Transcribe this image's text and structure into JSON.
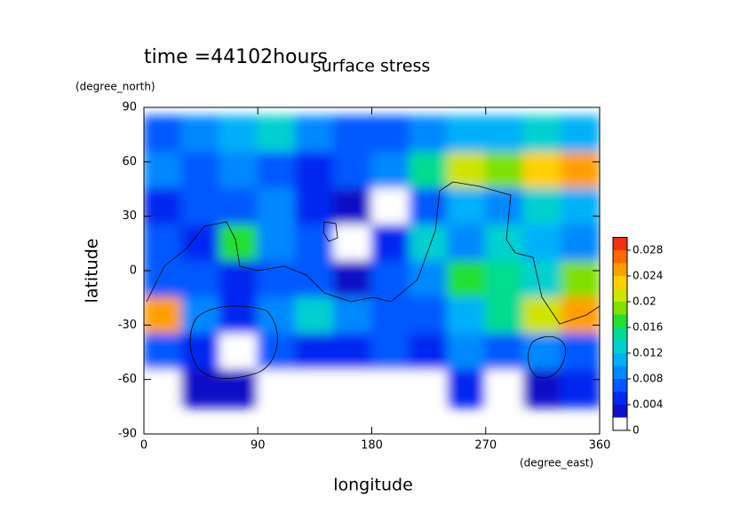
{
  "chart_data": {
    "type": "contour",
    "title": "surface stress",
    "subtitle": "time =44102hours",
    "x_label": "longitude",
    "y_label": "latitude",
    "x_unit": "(degree_east)",
    "y_unit": "(degree_north)",
    "xlim": [
      0,
      360
    ],
    "ylim": [
      -90,
      90
    ],
    "xticks": [
      0,
      90,
      180,
      270,
      360
    ],
    "yticks": [
      -90,
      -60,
      -30,
      0,
      30,
      60,
      90
    ],
    "x": [
      15,
      45,
      75,
      105,
      135,
      165,
      195,
      225,
      255,
      285,
      315,
      345
    ],
    "y": [
      75,
      55,
      35,
      15,
      -5,
      -25,
      -45,
      -65
    ],
    "z": [
      [
        0.006,
        0.008,
        0.01,
        0.012,
        0.008,
        0.006,
        0.006,
        0.008,
        0.01,
        0.01,
        0.012,
        0.01
      ],
      [
        0.008,
        0.006,
        0.008,
        0.006,
        0.004,
        0.006,
        0.008,
        0.014,
        0.02,
        0.018,
        0.022,
        0.024
      ],
      [
        0.004,
        0.006,
        0.006,
        0.008,
        0.004,
        0.002,
        0.001,
        0.006,
        0.01,
        0.008,
        0.012,
        0.01
      ],
      [
        0.006,
        0.004,
        0.016,
        0.008,
        0.006,
        0.001,
        0.004,
        0.012,
        0.008,
        0.012,
        0.01,
        0.008
      ],
      [
        0.006,
        0.006,
        0.004,
        0.006,
        0.006,
        0.002,
        0.006,
        0.008,
        0.016,
        0.014,
        0.012,
        0.018
      ],
      [
        0.024,
        0.008,
        0.004,
        0.008,
        0.012,
        0.008,
        0.006,
        0.006,
        0.01,
        0.014,
        0.02,
        0.024
      ],
      [
        0.006,
        0.004,
        0.001,
        0.006,
        0.004,
        0.004,
        0.006,
        0.004,
        0.008,
        0.006,
        0.008,
        0.006
      ],
      [
        0.001,
        0.002,
        0.002,
        0.001,
        0.001,
        0.001,
        0.001,
        0.001,
        0.004,
        0.001,
        0.002,
        0.004
      ]
    ],
    "clim": [
      0,
      0.03
    ],
    "levels": [
      0,
      0.002,
      0.004,
      0.006,
      0.008,
      0.01,
      0.012,
      0.014,
      0.016,
      0.018,
      0.02,
      0.022,
      0.024,
      0.026,
      0.028,
      0.03
    ],
    "colors": [
      "#ffffff",
      "#1010c8",
      "#0028f0",
      "#0058ff",
      "#0088ff",
      "#00b0f8",
      "#00d0d0",
      "#00dc90",
      "#20e030",
      "#80e000",
      "#d0e400",
      "#ffd000",
      "#ffa000",
      "#ff6800",
      "#f03010"
    ],
    "cticks": [
      0,
      0.004,
      0.008,
      0.012,
      0.016,
      0.02,
      0.024,
      0.028
    ]
  }
}
